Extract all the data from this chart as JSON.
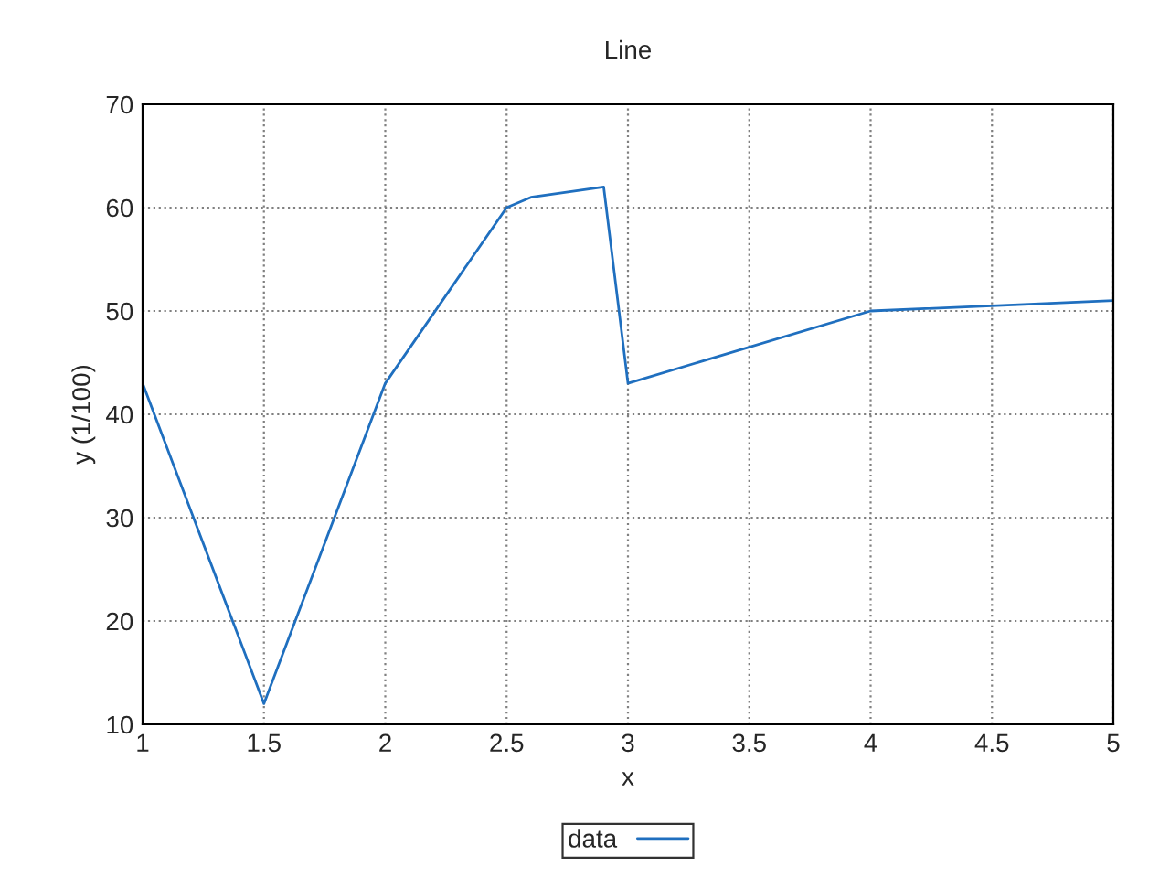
{
  "chart_data": {
    "type": "line",
    "title": "Line",
    "xlabel": "x",
    "ylabel": "y (1/100)",
    "series": [
      {
        "name": "data",
        "color": "#1f6fbf",
        "x": [
          1,
          1.5,
          2,
          2.5,
          2.6,
          2.9,
          3,
          4,
          5
        ],
        "values": [
          43,
          12,
          43,
          60,
          61,
          62,
          43,
          50,
          51
        ]
      }
    ],
    "xlim": [
      1,
      5
    ],
    "xticks": [
      1,
      1.5,
      2,
      2.5,
      3,
      3.5,
      4,
      4.5,
      5
    ],
    "ylim": [
      10,
      70
    ],
    "yticks": [
      10,
      20,
      30,
      40,
      50,
      60,
      70
    ],
    "grid": true,
    "legend": "bottom",
    "marker": "none",
    "line_style": "solid"
  }
}
